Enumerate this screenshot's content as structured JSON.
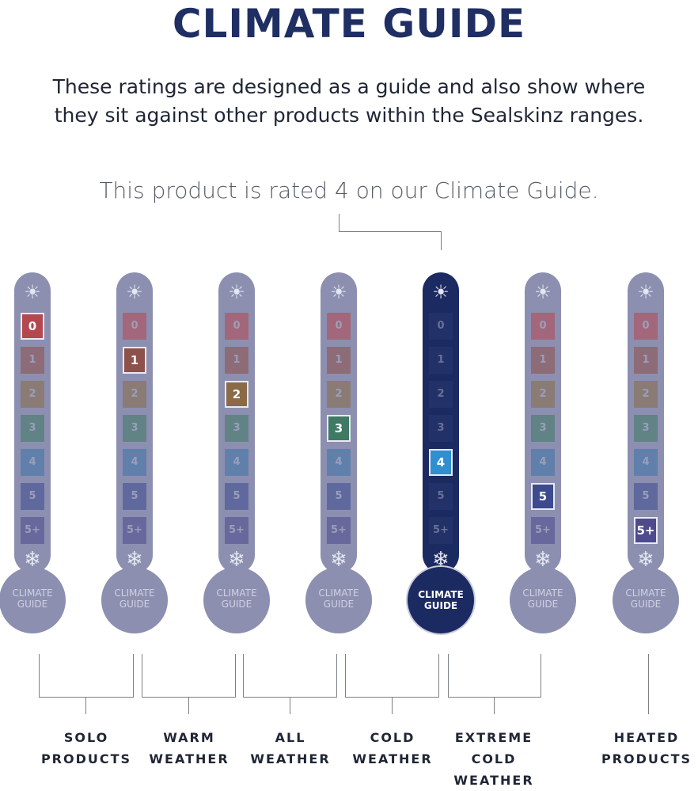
{
  "title": "CLIMATE GUIDE",
  "subtitle_line1": "These ratings are designed as a guide and also show where",
  "subtitle_line2": "they sit against other products within the Sealskinz ranges.",
  "rated_text": "This product is rated 4 on our Climate Guide.",
  "scale_levels": [
    "0",
    "1",
    "2",
    "3",
    "4",
    "5",
    "5+"
  ],
  "level_colors": [
    "#b5474f",
    "#8e5149",
    "#8a6b46",
    "#3f7a64",
    "#3d74a8",
    "#3c4b8e",
    "#4e4a8c"
  ],
  "icons": {
    "top": "sun-icon",
    "bottom": "snowflake-icon"
  },
  "bulb_label_line1": "CLIMATE",
  "bulb_label_line2": "GUIDE",
  "thermometers": [
    {
      "rating": "0",
      "featured": false
    },
    {
      "rating": "1",
      "featured": false
    },
    {
      "rating": "2",
      "featured": false
    },
    {
      "rating": "3",
      "featured": false
    },
    {
      "rating": "4",
      "featured": true
    },
    {
      "rating": "5",
      "featured": false
    },
    {
      "rating": "5+",
      "featured": false
    }
  ],
  "categories": [
    {
      "line1": "SOLO",
      "line2": "PRODUCTS",
      "line3": ""
    },
    {
      "line1": "WARM",
      "line2": "WEATHER",
      "line3": ""
    },
    {
      "line1": "ALL",
      "line2": "WEATHER",
      "line3": ""
    },
    {
      "line1": "COLD",
      "line2": "WEATHER",
      "line3": ""
    },
    {
      "line1": "EXTREME",
      "line2": "COLD",
      "line3": "WEATHER"
    },
    {
      "line1": "HEATED",
      "line2": "PRODUCTS",
      "line3": ""
    }
  ],
  "colors": {
    "title": "#1f2f63",
    "thermometer": "#8c8fb0",
    "featured_thermometer": "#1c2a62"
  }
}
